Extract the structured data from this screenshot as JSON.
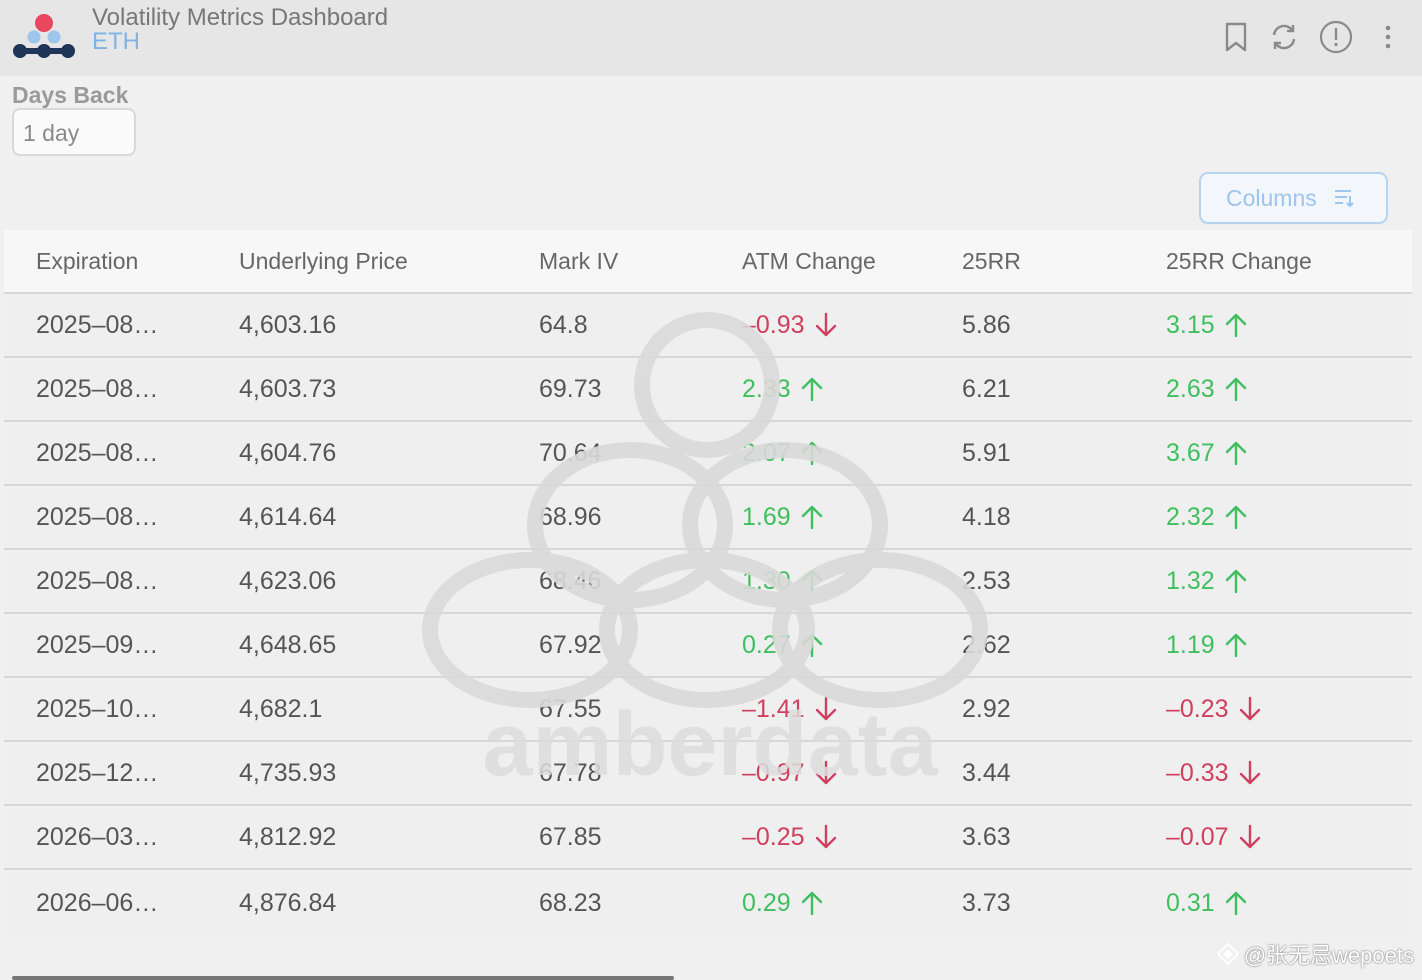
{
  "header": {
    "title": "Volatility Metrics Dashboard",
    "subtitle": "ETH",
    "icons": [
      "bookmark-icon",
      "refresh-icon",
      "info-icon",
      "more-vertical-icon"
    ]
  },
  "filters": {
    "days_back_label": "Days Back",
    "days_back_value": "1 day"
  },
  "toolbar": {
    "columns_label": "Columns"
  },
  "table": {
    "headers": [
      "Expiration",
      "Underlying Price",
      "Mark IV",
      "ATM Change",
      "25RR",
      "25RR Change"
    ],
    "rows": [
      {
        "expiration": "2025–08…",
        "price": "4,603.16",
        "mark_iv": "64.8",
        "atm_change": "–0.93",
        "atm_dir": "down",
        "rr25": "5.86",
        "rr25_change": "3.15",
        "rr_dir": "up"
      },
      {
        "expiration": "2025–08…",
        "price": "4,603.73",
        "mark_iv": "69.73",
        "atm_change": "2.33",
        "atm_dir": "up",
        "rr25": "6.21",
        "rr25_change": "2.63",
        "rr_dir": "up"
      },
      {
        "expiration": "2025–08…",
        "price": "4,604.76",
        "mark_iv": "70.64",
        "atm_change": "2.07",
        "atm_dir": "up",
        "rr25": "5.91",
        "rr25_change": "3.67",
        "rr_dir": "up"
      },
      {
        "expiration": "2025–08…",
        "price": "4,614.64",
        "mark_iv": "68.96",
        "atm_change": "1.69",
        "atm_dir": "up",
        "rr25": "4.18",
        "rr25_change": "2.32",
        "rr_dir": "up"
      },
      {
        "expiration": "2025–08…",
        "price": "4,623.06",
        "mark_iv": "68.46",
        "atm_change": "1.30",
        "atm_dir": "up",
        "rr25": "2.53",
        "rr25_change": "1.32",
        "rr_dir": "up"
      },
      {
        "expiration": "2025–09…",
        "price": "4,648.65",
        "mark_iv": "67.92",
        "atm_change": "0.27",
        "atm_dir": "up",
        "rr25": "2.62",
        "rr25_change": "1.19",
        "rr_dir": "up"
      },
      {
        "expiration": "2025–10…",
        "price": "4,682.1",
        "mark_iv": "67.55",
        "atm_change": "–1.41",
        "atm_dir": "down",
        "rr25": "2.92",
        "rr25_change": "–0.23",
        "rr_dir": "down"
      },
      {
        "expiration": "2025–12…",
        "price": "4,735.93",
        "mark_iv": "67.78",
        "atm_change": "–0.97",
        "atm_dir": "down",
        "rr25": "3.44",
        "rr25_change": "–0.33",
        "rr_dir": "down"
      },
      {
        "expiration": "2026–03…",
        "price": "4,812.92",
        "mark_iv": "67.85",
        "atm_change": "–0.25",
        "atm_dir": "down",
        "rr25": "3.63",
        "rr25_change": "–0.07",
        "rr_dir": "down"
      },
      {
        "expiration": "2026–06…",
        "price": "4,876.84",
        "mark_iv": "68.23",
        "atm_change": "0.29",
        "atm_dir": "up",
        "rr25": "3.73",
        "rr25_change": "0.31",
        "rr_dir": "up"
      }
    ]
  },
  "colors": {
    "positive": "#3fbf5e",
    "negative": "#d0405e",
    "accent": "#7db4e6"
  },
  "watermark": {
    "text": "amberdata"
  },
  "credit": {
    "text": "@张无忌wepoets"
  }
}
